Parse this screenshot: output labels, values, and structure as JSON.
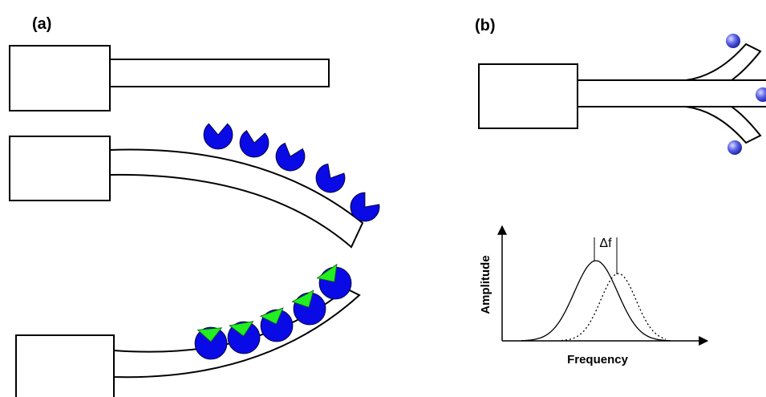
{
  "panel_a": {
    "label": "(a)"
  },
  "panel_b": {
    "label": "(b)",
    "graph": {
      "delta_label": "Δf",
      "y_axis_label": "Amplitude",
      "x_axis_label": "Frequency"
    }
  }
}
